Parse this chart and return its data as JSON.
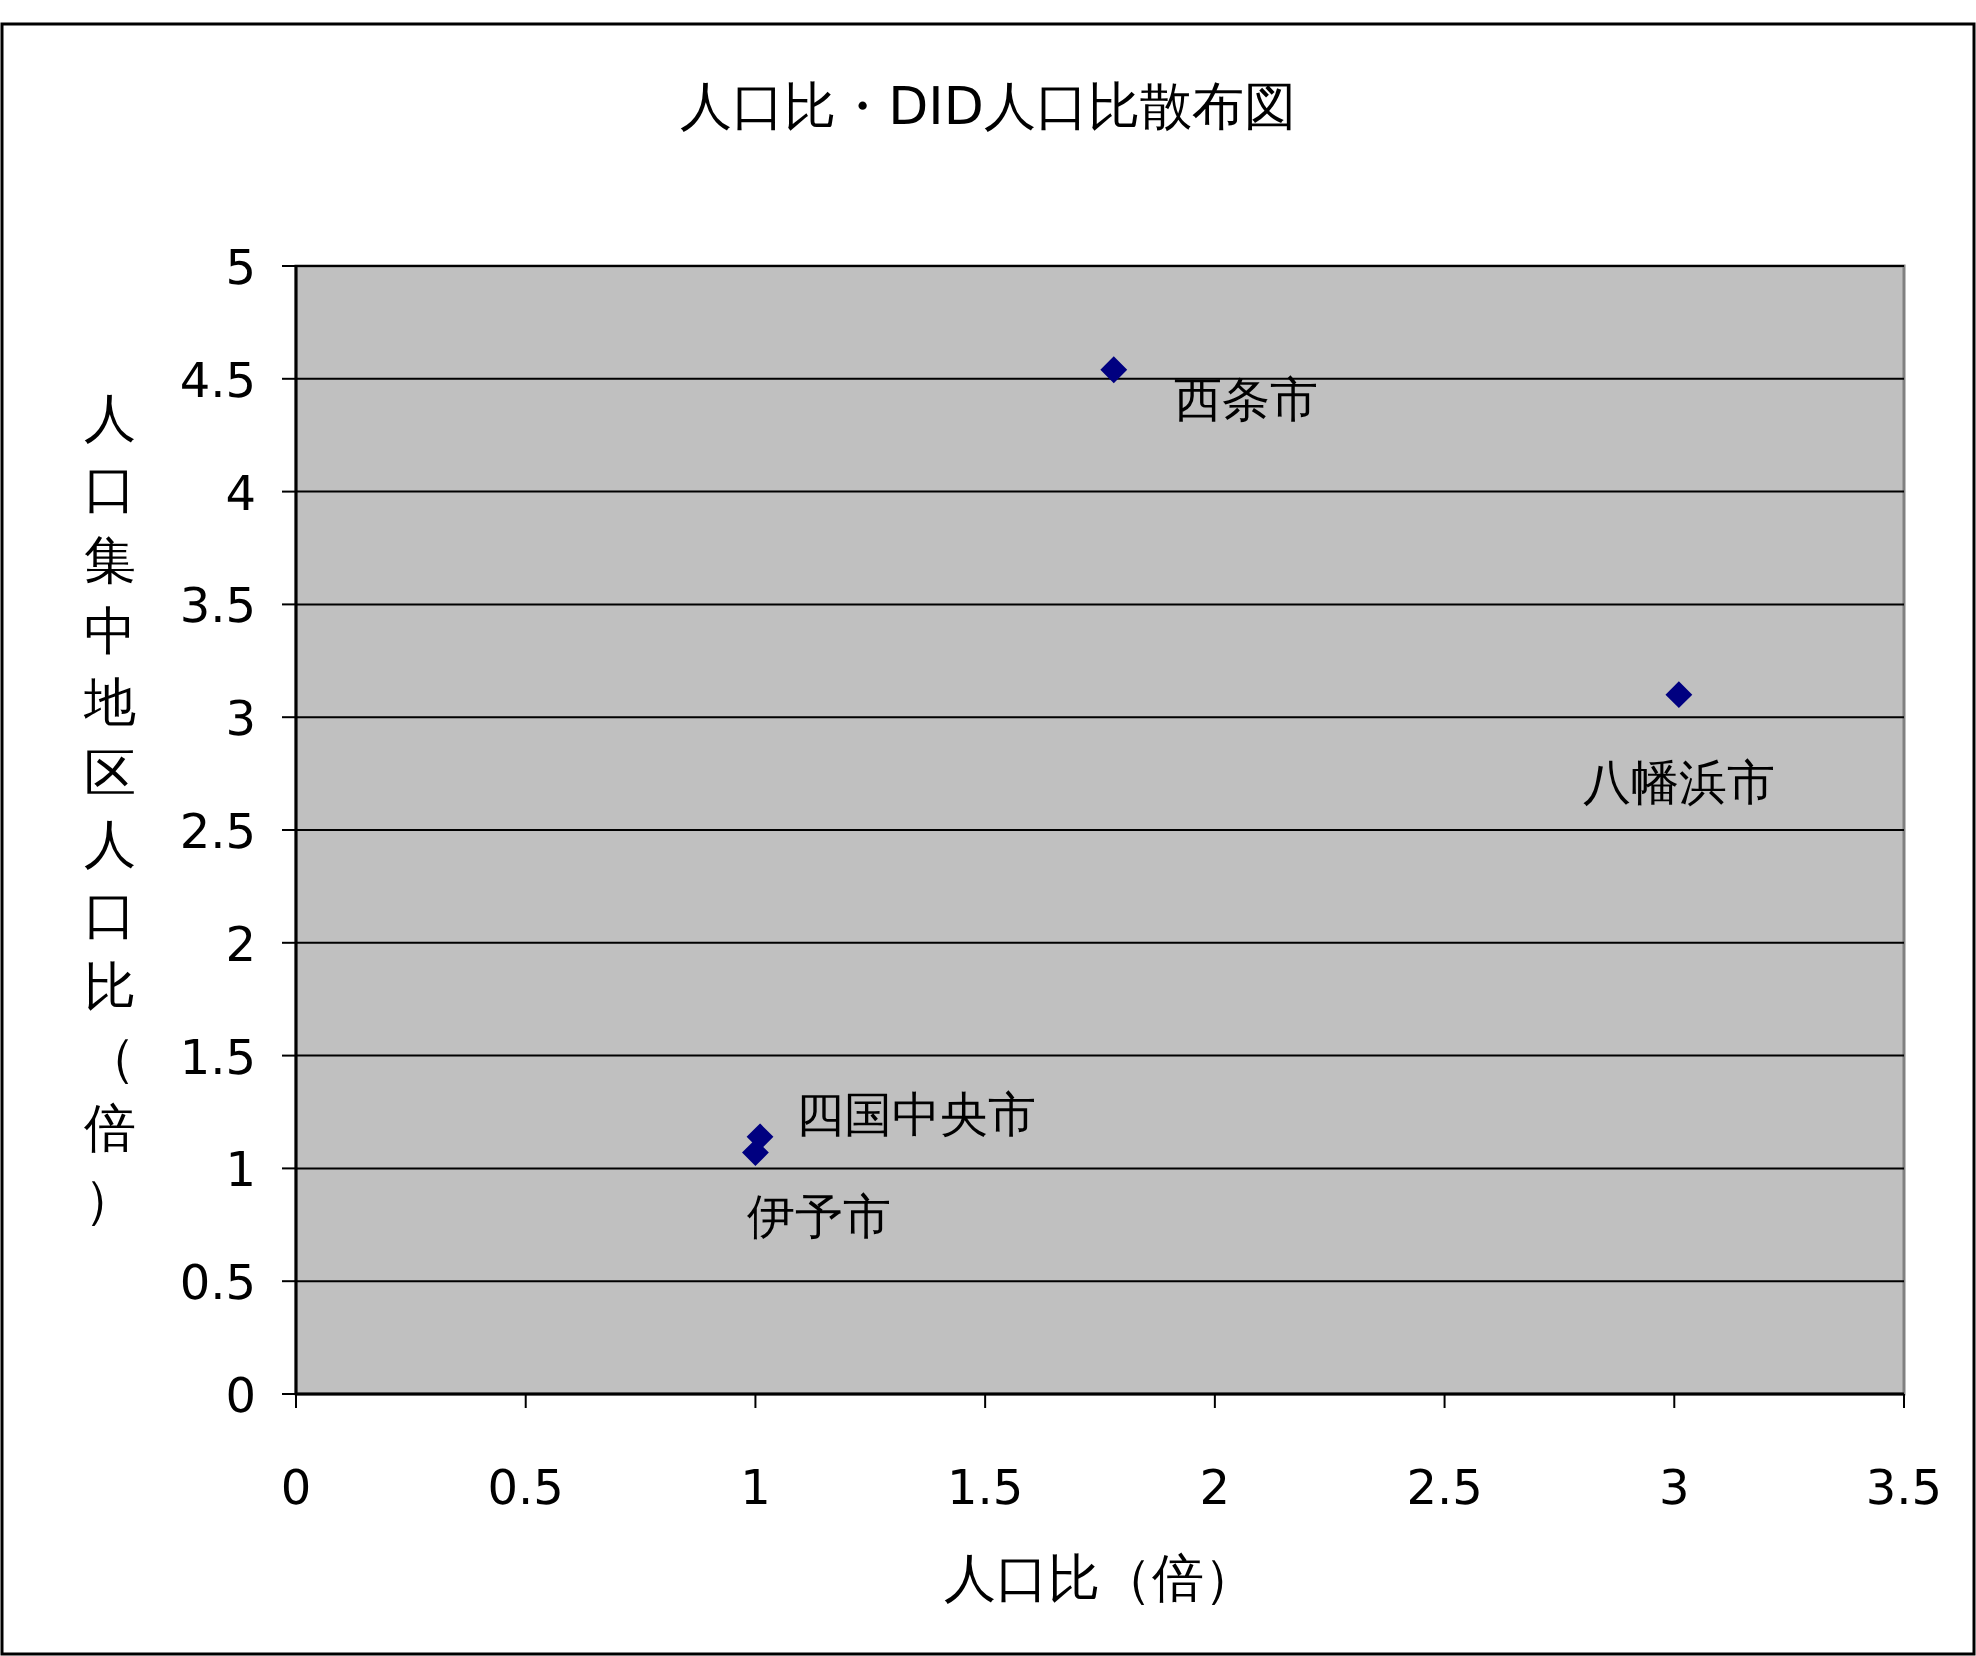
{
  "chart_data": {
    "type": "scatter",
    "title": "人口比・DID人口比散布図",
    "xlabel": "人口比（倍）",
    "ylabel": "人口集中地区人口比（倍）",
    "x": [
      1.78,
      3.01,
      1.01,
      1.0
    ],
    "values": [
      4.54,
      3.1,
      1.14,
      1.07
    ],
    "color": "#000080",
    "marker": "diamond",
    "xlim": [
      0,
      3.5
    ],
    "xticks": [
      0,
      0.5,
      1,
      1.5,
      2,
      2.5,
      3,
      3.5
    ],
    "ylim": [
      0,
      5
    ],
    "yticks": [
      0,
      0.5,
      1,
      1.5,
      2,
      2.5,
      3,
      3.5,
      4,
      4.5,
      5
    ],
    "grid": "y",
    "annotations": [
      {
        "text": "西条市",
        "x": 1.78,
        "y": 4.54
      },
      {
        "text": "八幡浜市",
        "x": 3.01,
        "y": 3.1
      },
      {
        "text": "四国中央市",
        "x": 1.01,
        "y": 1.14
      },
      {
        "text": "伊予市",
        "x": 1.0,
        "y": 1.07
      }
    ]
  }
}
